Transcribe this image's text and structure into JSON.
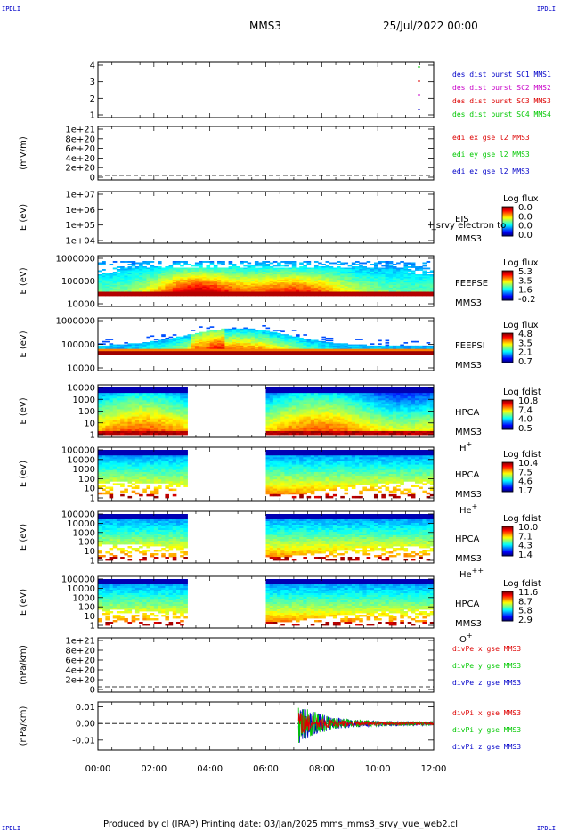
{
  "corners": {
    "tl": "IPDLI",
    "tr": "IPDLI",
    "bl": "IPDLI",
    "br": "IPDLI"
  },
  "header": {
    "title": "MMS3",
    "date": "25/Jul/2022 00:00"
  },
  "footer": {
    "text": "Produced by cl (IRAP)   Printing date: 03/Jan/2025   mms_mms3_srvy_vue_web2.cl"
  },
  "colors": {
    "red": "#dd0000",
    "green": "#00c800",
    "blue": "#0000c8",
    "magenta": "#c800c8"
  },
  "chart_data": [
    {
      "type": "line",
      "id": "des-dist-burst",
      "y_ticks": [
        "1",
        "2",
        "3",
        "4"
      ],
      "series": [
        {
          "name": "des dist burst SC1 MMS1",
          "color": "#0000c8"
        },
        {
          "name": "des dist burst SC2 MMS2",
          "color": "#c800c8"
        },
        {
          "name": "des dist burst SC3 MMS3",
          "color": "#dd0000"
        },
        {
          "name": "des dist burst SC4 MMS4",
          "color": "#00c800"
        }
      ]
    },
    {
      "type": "line",
      "id": "edi-e-gse",
      "ylabel": "(mV/m)",
      "y_ticks": [
        "0",
        "2e+20",
        "4e+20",
        "6e+20",
        "8e+20",
        "1e+21"
      ],
      "series": [
        {
          "name": "edi ex gse l2 MMS3",
          "color": "#dd0000"
        },
        {
          "name": "edi ey gse l2 MMS3",
          "color": "#00c800"
        },
        {
          "name": "edi ez gse l2 MMS3",
          "color": "#0000c8"
        }
      ]
    },
    {
      "type": "heatmap",
      "id": "eis",
      "ylabel": "E (eV)",
      "y_ticks": [
        "1e+04",
        "1e+05",
        "1e+06",
        "1e+07"
      ],
      "right_labels": [
        "EIS",
        "MMS3"
      ],
      "overlay_text": "l_srvy electron to",
      "colorbar": {
        "title": "Log flux",
        "ticks": [
          "0.0",
          "0.0",
          "0.0",
          "0.0"
        ]
      }
    },
    {
      "type": "heatmap",
      "id": "feeps-e",
      "ylabel": "E (eV)",
      "y_ticks": [
        "10000",
        "100000",
        "1000000"
      ],
      "right_labels": [
        "FEEPSE",
        "MMS3"
      ],
      "colorbar": {
        "title": "Log flux",
        "ticks": [
          "5.3",
          "3.5",
          "1.6",
          "-0.2"
        ]
      }
    },
    {
      "type": "heatmap",
      "id": "feeps-i",
      "ylabel": "E (eV)",
      "y_ticks": [
        "10000",
        "100000",
        "1000000"
      ],
      "right_labels": [
        "FEEPSI",
        "MMS3"
      ],
      "colorbar": {
        "title": "Log flux",
        "ticks": [
          "4.8",
          "3.5",
          "2.1",
          "0.7"
        ]
      }
    },
    {
      "type": "heatmap",
      "id": "hpca-h",
      "ylabel": "E (eV)",
      "y_ticks": [
        "1",
        "10",
        "100",
        "1000",
        "10000"
      ],
      "right_labels": [
        "HPCA",
        "MMS3"
      ],
      "species": "H",
      "species_sup": "+",
      "data_gap": [
        "03:10",
        "06:00"
      ],
      "colorbar": {
        "title": "Log fdist",
        "ticks": [
          "10.8",
          "7.4",
          "4.0",
          "0.5"
        ]
      }
    },
    {
      "type": "heatmap",
      "id": "hpca-he",
      "ylabel": "E (eV)",
      "y_ticks": [
        "1",
        "10",
        "100",
        "1000",
        "10000",
        "100000"
      ],
      "right_labels": [
        "HPCA",
        "MMS3"
      ],
      "species": "He",
      "species_sup": "+",
      "data_gap": [
        "03:10",
        "06:00"
      ],
      "colorbar": {
        "title": "Log fdist",
        "ticks": [
          "10.4",
          "7.5",
          "4.6",
          "1.7"
        ]
      }
    },
    {
      "type": "heatmap",
      "id": "hpca-hepp",
      "ylabel": "E (eV)",
      "y_ticks": [
        "1",
        "10",
        "100",
        "1000",
        "10000",
        "100000"
      ],
      "right_labels": [
        "HPCA",
        "MMS3"
      ],
      "species": "He",
      "species_sup": "++",
      "data_gap": [
        "03:10",
        "06:00"
      ],
      "colorbar": {
        "title": "Log fdist",
        "ticks": [
          "10.0",
          "7.1",
          "4.3",
          "1.4"
        ]
      }
    },
    {
      "type": "heatmap",
      "id": "hpca-o",
      "ylabel": "E (eV)",
      "y_ticks": [
        "1",
        "10",
        "100",
        "1000",
        "10000",
        "100000"
      ],
      "right_labels": [
        "HPCA",
        "MMS3"
      ],
      "species": "O",
      "species_sup": "+",
      "data_gap": [
        "03:10",
        "06:00"
      ],
      "colorbar": {
        "title": "Log fdist",
        "ticks": [
          "11.6",
          "8.7",
          "5.8",
          "2.9"
        ]
      }
    },
    {
      "type": "line",
      "id": "divpe",
      "ylabel": "(nPa/km)",
      "y_ticks": [
        "0",
        "2e+20",
        "4e+20",
        "6e+20",
        "8e+20",
        "1e+21"
      ],
      "series": [
        {
          "name": "divPe x gse MMS3",
          "color": "#dd0000"
        },
        {
          "name": "divPe y gse MMS3",
          "color": "#00c800"
        },
        {
          "name": "divPe z gse MMS3",
          "color": "#0000c8"
        }
      ]
    },
    {
      "type": "line",
      "id": "divpi",
      "ylabel": "(nPa/km)",
      "y_ticks": [
        "-0.01",
        "0.00",
        "0.01"
      ],
      "ylim": [
        -0.016,
        0.013
      ],
      "event_start": "07:10",
      "series": [
        {
          "name": "divPi x gse MMS3",
          "color": "#dd0000"
        },
        {
          "name": "divPi y gse MMS3",
          "color": "#00c800"
        },
        {
          "name": "divPi z gse MMS3",
          "color": "#0000c8"
        }
      ]
    }
  ],
  "x_axis": {
    "ticks": [
      "00:00",
      "02:00",
      "04:00",
      "06:00",
      "08:00",
      "10:00",
      "12:00"
    ],
    "range": [
      "00:00",
      "12:00"
    ]
  }
}
